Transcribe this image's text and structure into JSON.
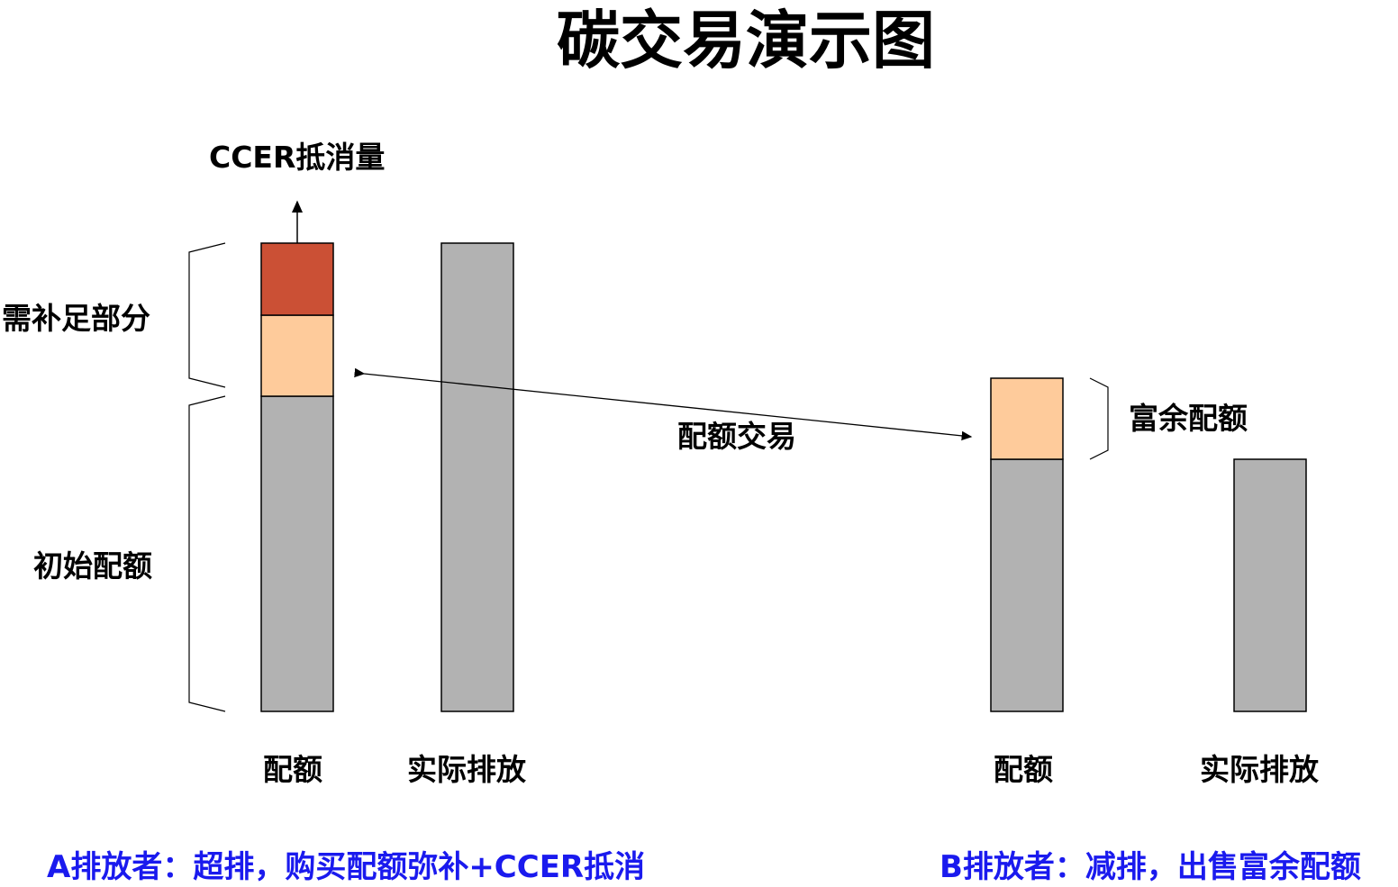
{
  "title": "碳交易演示图",
  "colors": {
    "grey": "#b2b2b2",
    "shortfall_ccer": "#cb5035",
    "traded_allowance": "#fecb9b",
    "footer_text": "#1a1aee"
  },
  "party_a": {
    "ccer_label": "CCER抵消量",
    "shortfall_label": "需补足部分",
    "initial_allowance_label": "初始配额",
    "allowance_label": "配额",
    "actual_emission_label": "实际排放",
    "caption": "A排放者：超排，购买配额弥补+CCER抵消"
  },
  "trade_label": "配额交易",
  "party_b": {
    "surplus_label": "富余配额",
    "allowance_label": "配额",
    "actual_emission_label": "实际排放",
    "caption": "B排放者：减排，出售富余配额"
  }
}
